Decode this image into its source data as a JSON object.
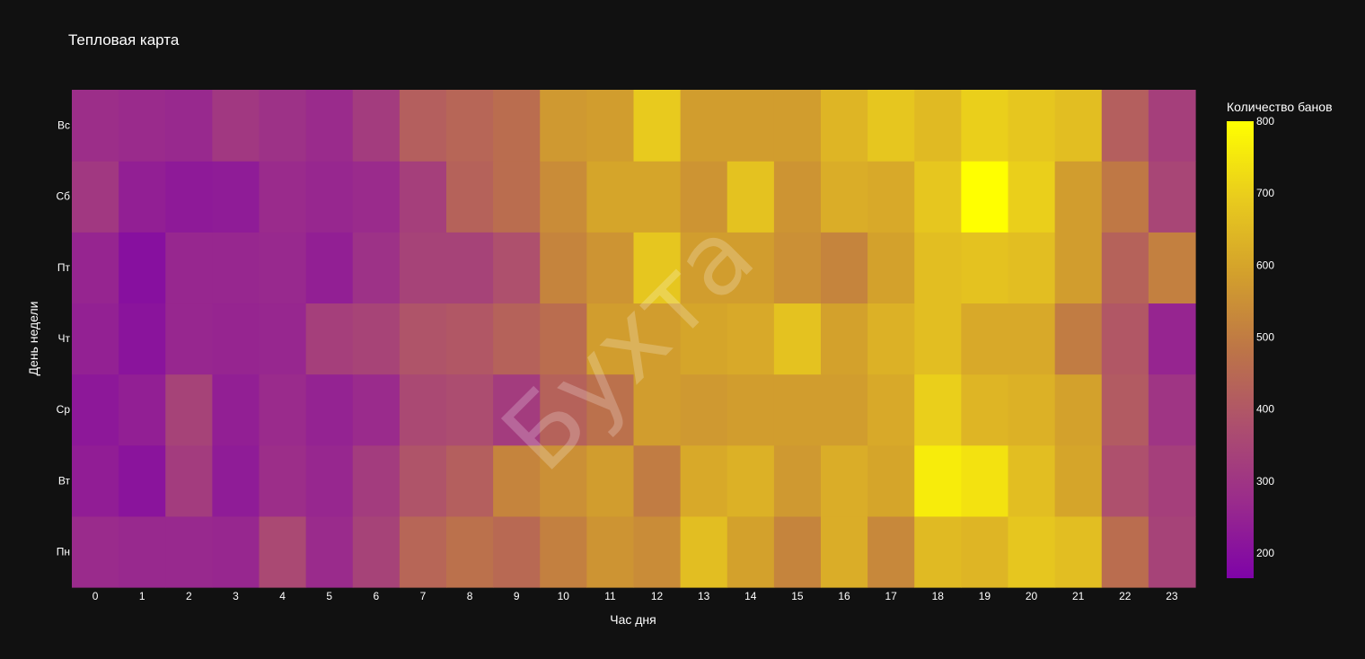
{
  "chart_data": {
    "type": "heatmap",
    "title": "Тепловая карта",
    "xlabel": "Час дня",
    "ylabel": "День недели",
    "x": [
      "0",
      "1",
      "2",
      "3",
      "4",
      "5",
      "6",
      "7",
      "8",
      "9",
      "10",
      "11",
      "12",
      "13",
      "14",
      "15",
      "16",
      "17",
      "18",
      "19",
      "20",
      "21",
      "22",
      "23"
    ],
    "y": [
      "Пн",
      "Вт",
      "Ср",
      "Чт",
      "Пт",
      "Сб",
      "Вс"
    ],
    "z": [
      [
        270,
        265,
        265,
        260,
        360,
        270,
        340,
        440,
        470,
        450,
        510,
        560,
        540,
        660,
        590,
        520,
        620,
        530,
        650,
        640,
        680,
        660,
        460,
        340
      ],
      [
        235,
        210,
        320,
        230,
        280,
        260,
        320,
        390,
        420,
        520,
        550,
        580,
        500,
        610,
        630,
        570,
        620,
        600,
        760,
        740,
        660,
        600,
        380,
        330
      ],
      [
        220,
        240,
        340,
        240,
        270,
        250,
        270,
        360,
        370,
        320,
        430,
        470,
        580,
        570,
        580,
        580,
        580,
        610,
        700,
        640,
        630,
        590,
        410,
        300
      ],
      [
        245,
        210,
        260,
        255,
        260,
        330,
        345,
        390,
        400,
        430,
        460,
        580,
        580,
        600,
        610,
        670,
        590,
        630,
        660,
        610,
        610,
        500,
        400,
        255
      ],
      [
        255,
        200,
        260,
        260,
        265,
        240,
        290,
        340,
        340,
        380,
        520,
        560,
        680,
        580,
        580,
        550,
        520,
        590,
        660,
        670,
        660,
        580,
        430,
        510
      ],
      [
        310,
        240,
        225,
        230,
        270,
        260,
        270,
        330,
        430,
        460,
        540,
        600,
        600,
        560,
        670,
        560,
        620,
        610,
        680,
        800,
        700,
        580,
        490,
        350
      ],
      [
        280,
        270,
        265,
        310,
        290,
        270,
        320,
        420,
        440,
        460,
        570,
        580,
        690,
        580,
        580,
        580,
        640,
        680,
        650,
        700,
        680,
        660,
        420,
        330
      ]
    ],
    "zmin": 165,
    "zmax": 800,
    "colorscale": [
      "#7e03a8",
      "#9a2b8c",
      "#ad4f6e",
      "#bd7547",
      "#d3a02c",
      "#e9cc1d",
      "#ffff00"
    ],
    "colorbar": {
      "title": "Количество банов",
      "ticks": [
        "200",
        "300",
        "400",
        "500",
        "600",
        "700",
        "800"
      ]
    },
    "grid": false,
    "watermark": "Бухта"
  }
}
